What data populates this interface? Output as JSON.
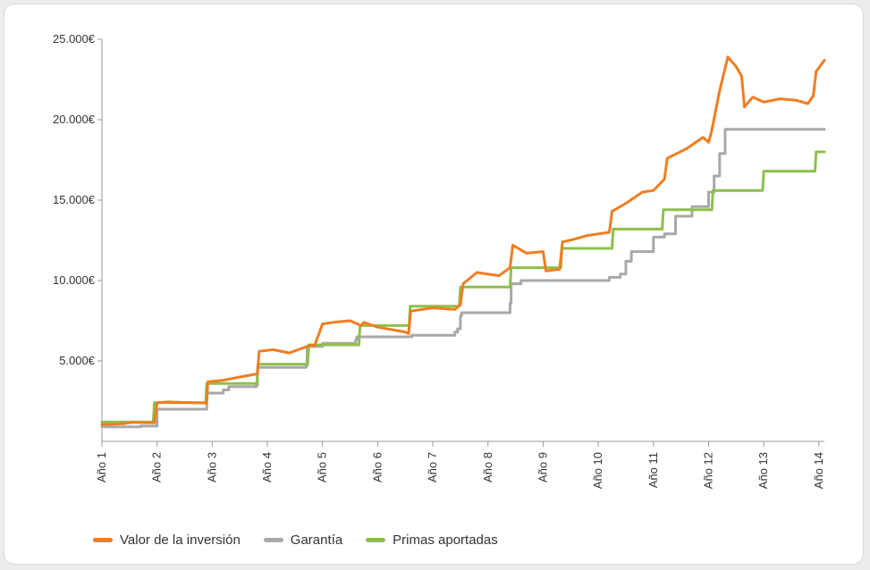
{
  "chart_data": {
    "type": "line",
    "title": "",
    "xlabel": "",
    "ylabel": "",
    "ylim": [
      0,
      25000
    ],
    "y_ticks": [
      {
        "value": 5000,
        "label": "5.000€"
      },
      {
        "value": 10000,
        "label": "10.000€"
      },
      {
        "value": 15000,
        "label": "15.000€"
      },
      {
        "value": 20000,
        "label": "20.000€"
      },
      {
        "value": 25000,
        "label": "25.000€"
      }
    ],
    "xlim": [
      1,
      14.1
    ],
    "categories": [
      "Año 1",
      "Año 2",
      "Año 3",
      "Año 4",
      "Año 5",
      "Año 6",
      "Año 7",
      "Año 8",
      "Año 9",
      "Año 10",
      "Año 11",
      "Año 12",
      "Año 13",
      "Año 14"
    ],
    "grid": false,
    "legend_position": "bottom-left",
    "series": [
      {
        "name": "Valor de la inversión",
        "color": "#f07d21",
        "x": [
          1.0,
          1.4,
          1.55,
          1.95,
          2.0,
          2.2,
          2.5,
          2.9,
          2.92,
          3.2,
          3.5,
          3.82,
          3.85,
          4.1,
          4.4,
          4.8,
          4.85,
          5.0,
          5.2,
          5.5,
          5.7,
          5.75,
          6.0,
          6.5,
          6.56,
          6.6,
          7.0,
          7.4,
          7.5,
          7.55,
          7.8,
          8.2,
          8.4,
          8.45,
          8.7,
          9.0,
          9.05,
          9.3,
          9.35,
          9.6,
          9.8,
          10.2,
          10.25,
          10.5,
          10.8,
          11.0,
          11.2,
          11.25,
          11.6,
          11.9,
          12.0,
          12.05,
          12.2,
          12.35,
          12.5,
          12.6,
          12.65,
          12.8,
          13.0,
          13.3,
          13.6,
          13.8,
          13.9,
          13.95,
          14.1
        ],
        "y": [
          1050,
          1100,
          1180,
          1150,
          2400,
          2450,
          2420,
          2380,
          3700,
          3800,
          4000,
          4200,
          5600,
          5700,
          5500,
          6000,
          5900,
          7300,
          7400,
          7500,
          7200,
          7400,
          7100,
          6800,
          6700,
          8100,
          8300,
          8200,
          8500,
          9800,
          10500,
          10300,
          10800,
          12200,
          11700,
          11800,
          10600,
          10700,
          12400,
          12600,
          12800,
          13000,
          14300,
          14800,
          15500,
          15600,
          16300,
          17600,
          18200,
          18900,
          18600,
          19200,
          21800,
          23900,
          23300,
          22700,
          20800,
          21400,
          21100,
          21300,
          21200,
          21000,
          21500,
          23000,
          23700
        ]
      },
      {
        "name": "Garantía",
        "color": "#a8a8a8",
        "x": [
          1.0,
          1.7,
          1.95,
          2.0,
          2.85,
          2.9,
          3.2,
          3.3,
          3.8,
          3.82,
          4.7,
          4.72,
          5.0,
          5.6,
          5.62,
          6.6,
          6.62,
          7.4,
          7.45,
          7.5,
          7.52,
          8.4,
          8.42,
          8.6,
          9.0,
          9.5,
          10.2,
          10.25,
          10.4,
          10.5,
          10.6,
          11.0,
          11.2,
          11.4,
          11.7,
          12.0,
          12.1,
          12.2,
          12.3,
          13.0,
          13.5,
          14.1
        ],
        "y": [
          900,
          950,
          950,
          2000,
          2000,
          3000,
          3200,
          3400,
          3500,
          4600,
          4700,
          5900,
          6100,
          6300,
          6500,
          6500,
          6600,
          6800,
          7000,
          7800,
          8000,
          8600,
          9800,
          10000,
          10000,
          10000,
          10200,
          10200,
          10400,
          11200,
          11800,
          12700,
          12900,
          14000,
          14600,
          15500,
          16500,
          17900,
          19400,
          19400,
          19400,
          19400
        ],
        "steps": true
      },
      {
        "name": "Primas aportadas",
        "color": "#8dc04b",
        "x": [
          1.0,
          1.93,
          1.95,
          2.88,
          2.9,
          3.81,
          3.83,
          4.73,
          4.75,
          5.66,
          5.68,
          6.57,
          6.59,
          7.48,
          7.5,
          8.4,
          8.42,
          9.32,
          9.34,
          10.25,
          10.27,
          11.16,
          11.18,
          12.06,
          12.08,
          12.98,
          13.0,
          13.93,
          13.95,
          14.1
        ],
        "y": [
          1200,
          1200,
          2400,
          2400,
          3600,
          3600,
          4800,
          4800,
          6000,
          6000,
          7200,
          7200,
          8400,
          8400,
          9600,
          9600,
          10800,
          10800,
          12000,
          12000,
          13200,
          13200,
          14400,
          14400,
          15600,
          15600,
          16800,
          16800,
          18000,
          18000
        ]
      }
    ]
  }
}
